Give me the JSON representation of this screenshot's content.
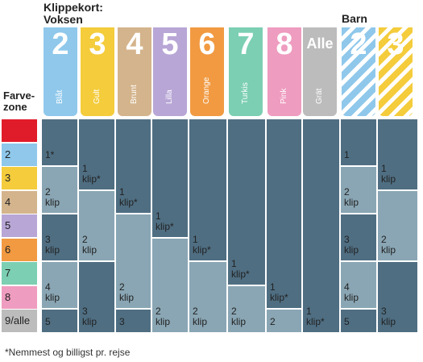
{
  "header": {
    "adult_title_line1": "Klippekort:",
    "adult_title_line2": "Voksen",
    "child_title": "Barn",
    "zone_title_line1": "Farve-",
    "zone_title_line2": "zone"
  },
  "tabs": [
    {
      "num": "2",
      "label": "Blåt",
      "color": "#8fc8eb"
    },
    {
      "num": "3",
      "label": "Gult",
      "color": "#f4cc3c"
    },
    {
      "num": "4",
      "label": "Brunt",
      "color": "#d4b48c"
    },
    {
      "num": "5",
      "label": "Lilla",
      "color": "#b8a6d6"
    },
    {
      "num": "6",
      "label": "Orange",
      "color": "#f19a42"
    },
    {
      "num": "7",
      "label": "Turkis",
      "color": "#7ccfb2"
    },
    {
      "num": "8",
      "label": "Pink",
      "color": "#ee9cbf"
    },
    {
      "num": "Alle",
      "label": "Grät",
      "color": "#bcbcbc"
    },
    {
      "num": "2",
      "label": "",
      "color": "#8fc8eb"
    },
    {
      "num": "3",
      "label": "",
      "color": "#f4cc3c"
    }
  ],
  "zones": [
    {
      "label": "",
      "color": "#e11c2a"
    },
    {
      "label": "2",
      "color": "#8fc8eb"
    },
    {
      "label": "3",
      "color": "#f4cc3c"
    },
    {
      "label": "4",
      "color": "#d4b48c"
    },
    {
      "label": "5",
      "color": "#b8a6d6"
    },
    {
      "label": "6",
      "color": "#f19a42"
    },
    {
      "label": "7",
      "color": "#7ccfb2"
    },
    {
      "label": "8",
      "color": "#ee9cbf"
    },
    {
      "label": "9/alle",
      "color": "#bcbcbc"
    }
  ],
  "cells": {
    "c1": [
      "1*",
      "2\nklip",
      "3\nklip",
      "4\nklip",
      "5"
    ],
    "c2": [
      "1\nklip*",
      "2\nklip",
      "3\nklip"
    ],
    "c3": [
      "1\nklip*",
      "2\nklip",
      "3"
    ],
    "c4": [
      "1\nklip*",
      "2\nklip"
    ],
    "c5": [
      "1\nklip*",
      "2\nklip"
    ],
    "c6": [
      "1\nklip*",
      "2\nklip"
    ],
    "c7": [
      "1\nklip*",
      "2"
    ],
    "c8": [
      "1\nklip*"
    ],
    "b1": [
      "1",
      "2\nklip",
      "3\nklip",
      "4\nklip",
      "5"
    ],
    "b2": [
      "1\nklip",
      "2\nklip",
      "3\nklip"
    ]
  },
  "colors": {
    "dark": "#4f6e82",
    "light": "#8aa6b4"
  },
  "footnote": "*Nemmest og billigst pr. rejse"
}
